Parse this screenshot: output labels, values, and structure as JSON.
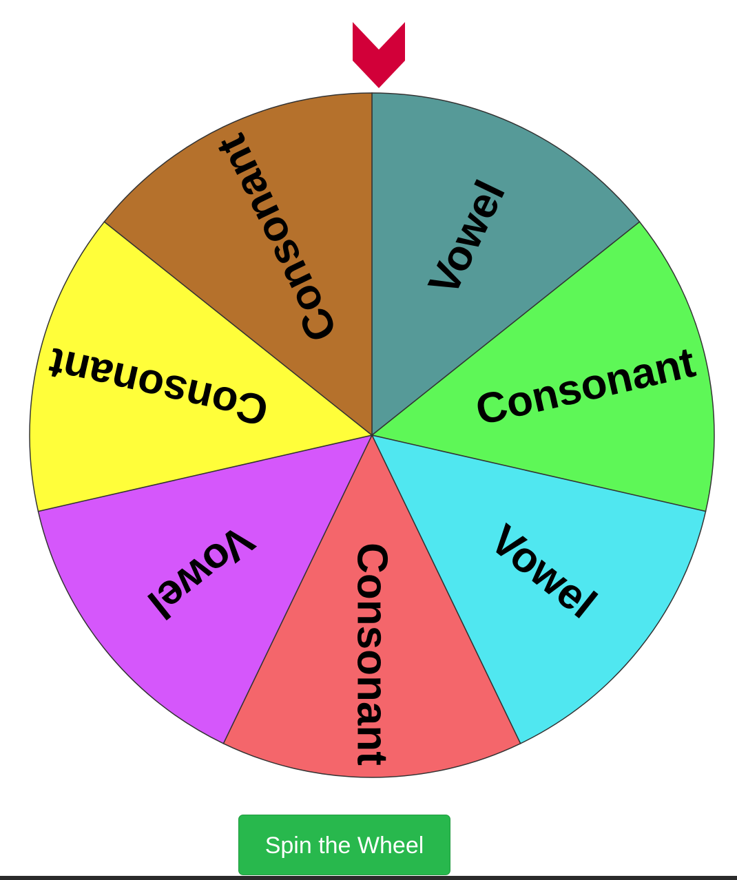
{
  "wheel": {
    "segments": [
      {
        "label": "Vowel",
        "color": "#569a98"
      },
      {
        "label": "Consonant",
        "color": "#5ef757"
      },
      {
        "label": "Vowel",
        "color": "#50e7f0"
      },
      {
        "label": "Consonant",
        "color": "#f4666b"
      },
      {
        "label": "Vowel",
        "color": "#d557fb"
      },
      {
        "label": "Consonant",
        "color": "#fffe3a"
      },
      {
        "label": "Consonant",
        "color": "#b5712c"
      }
    ],
    "pointer_color": "#d20039",
    "outline_color": "#333333",
    "text_color": "#000000"
  },
  "spin_button": {
    "label": "Spin the Wheel",
    "color": "#28b84d"
  }
}
